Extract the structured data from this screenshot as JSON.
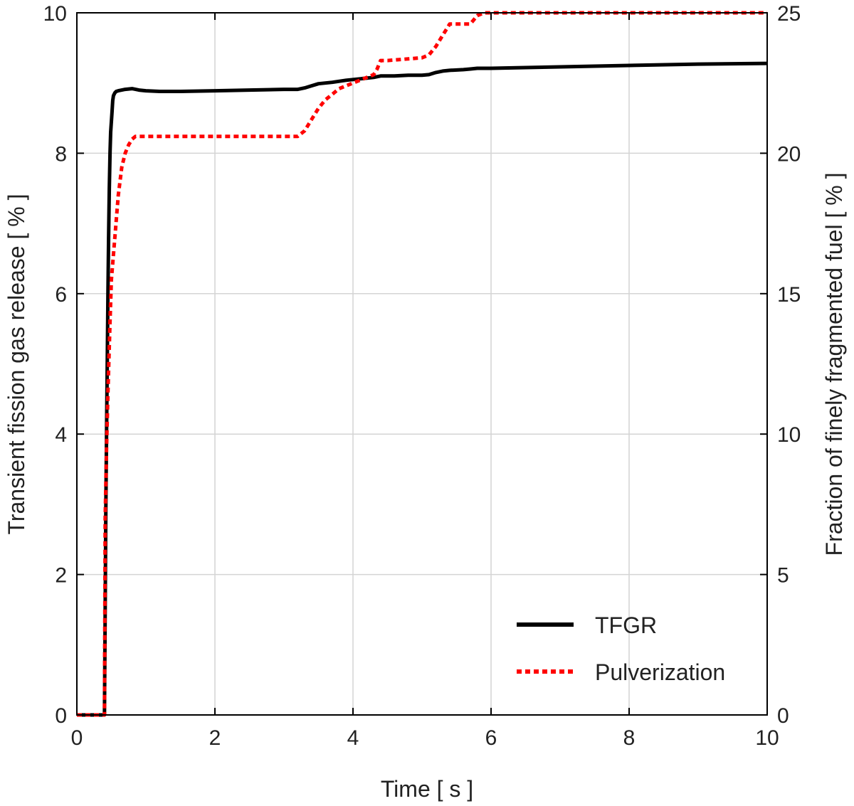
{
  "chart_data": {
    "type": "line",
    "xlabel": "Time [ s ]",
    "ylabel_left": "Transient fission gas release [ % ]",
    "ylabel_right": "Fraction of finely fragmented fuel [ % ]",
    "xlim": [
      0,
      10
    ],
    "ylim_left": [
      0,
      10
    ],
    "ylim_right": [
      0,
      25
    ],
    "x_ticks": [
      "0",
      "2",
      "4",
      "6",
      "8",
      "10"
    ],
    "y_left_ticks": [
      "0",
      "2",
      "4",
      "6",
      "8",
      "10"
    ],
    "y_right_ticks": [
      "0",
      "5",
      "10",
      "15",
      "20",
      "25"
    ],
    "grid": true,
    "legend_position": "bottom-right",
    "series": [
      {
        "name": "TFGR",
        "axis": "left",
        "color": "#000000",
        "style": "solid",
        "x": [
          0,
          0.4,
          0.41,
          0.42,
          0.43,
          0.44,
          0.45,
          0.46,
          0.47,
          0.48,
          0.49,
          0.5,
          0.51,
          0.52,
          0.53,
          0.55,
          0.57,
          0.6,
          0.65,
          0.7,
          0.8,
          0.9,
          1.0,
          1.2,
          1.5,
          2.0,
          2.5,
          3.0,
          3.2,
          3.3,
          3.4,
          3.5,
          3.7,
          3.9,
          4.1,
          4.3,
          4.4,
          4.6,
          4.8,
          5.0,
          5.1,
          5.2,
          5.3,
          5.4,
          5.6,
          5.7,
          5.8,
          6.0,
          7.0,
          8.0,
          9.0,
          10.0
        ],
        "y": [
          0,
          0,
          1.5,
          2.9,
          4.0,
          5.0,
          6.0,
          6.8,
          7.5,
          8.0,
          8.3,
          8.45,
          8.6,
          8.75,
          8.82,
          8.86,
          8.88,
          8.89,
          8.9,
          8.91,
          8.92,
          8.9,
          8.89,
          8.88,
          8.88,
          8.89,
          8.9,
          8.91,
          8.91,
          8.93,
          8.96,
          8.99,
          9.01,
          9.04,
          9.06,
          9.08,
          9.1,
          9.1,
          9.11,
          9.11,
          9.12,
          9.15,
          9.17,
          9.18,
          9.19,
          9.2,
          9.21,
          9.21,
          9.23,
          9.25,
          9.27,
          9.28
        ]
      },
      {
        "name": "Pulverization",
        "axis": "right",
        "color": "#ff0000",
        "style": "dotted",
        "x": [
          0,
          0.4,
          0.41,
          0.43,
          0.45,
          0.48,
          0.5,
          0.55,
          0.6,
          0.65,
          0.7,
          0.75,
          0.8,
          0.85,
          0.9,
          3.2,
          3.3,
          3.4,
          3.5,
          3.6,
          3.7,
          3.8,
          3.9,
          4.0,
          4.1,
          4.2,
          4.3,
          4.35,
          4.4,
          4.5,
          5.0,
          5.1,
          5.2,
          5.3,
          5.4,
          5.5,
          5.7,
          5.8,
          5.9,
          10.0
        ],
        "y": [
          0,
          0,
          7.0,
          9.5,
          11.5,
          14.0,
          15.5,
          17.0,
          18.5,
          19.5,
          20.0,
          20.3,
          20.5,
          20.6,
          20.6,
          20.6,
          20.8,
          21.2,
          21.6,
          21.9,
          22.1,
          22.3,
          22.4,
          22.5,
          22.6,
          22.7,
          22.8,
          23.0,
          23.3,
          23.3,
          23.4,
          23.5,
          23.8,
          24.2,
          24.6,
          24.6,
          24.6,
          24.9,
          25.0,
          25.0
        ]
      }
    ]
  }
}
